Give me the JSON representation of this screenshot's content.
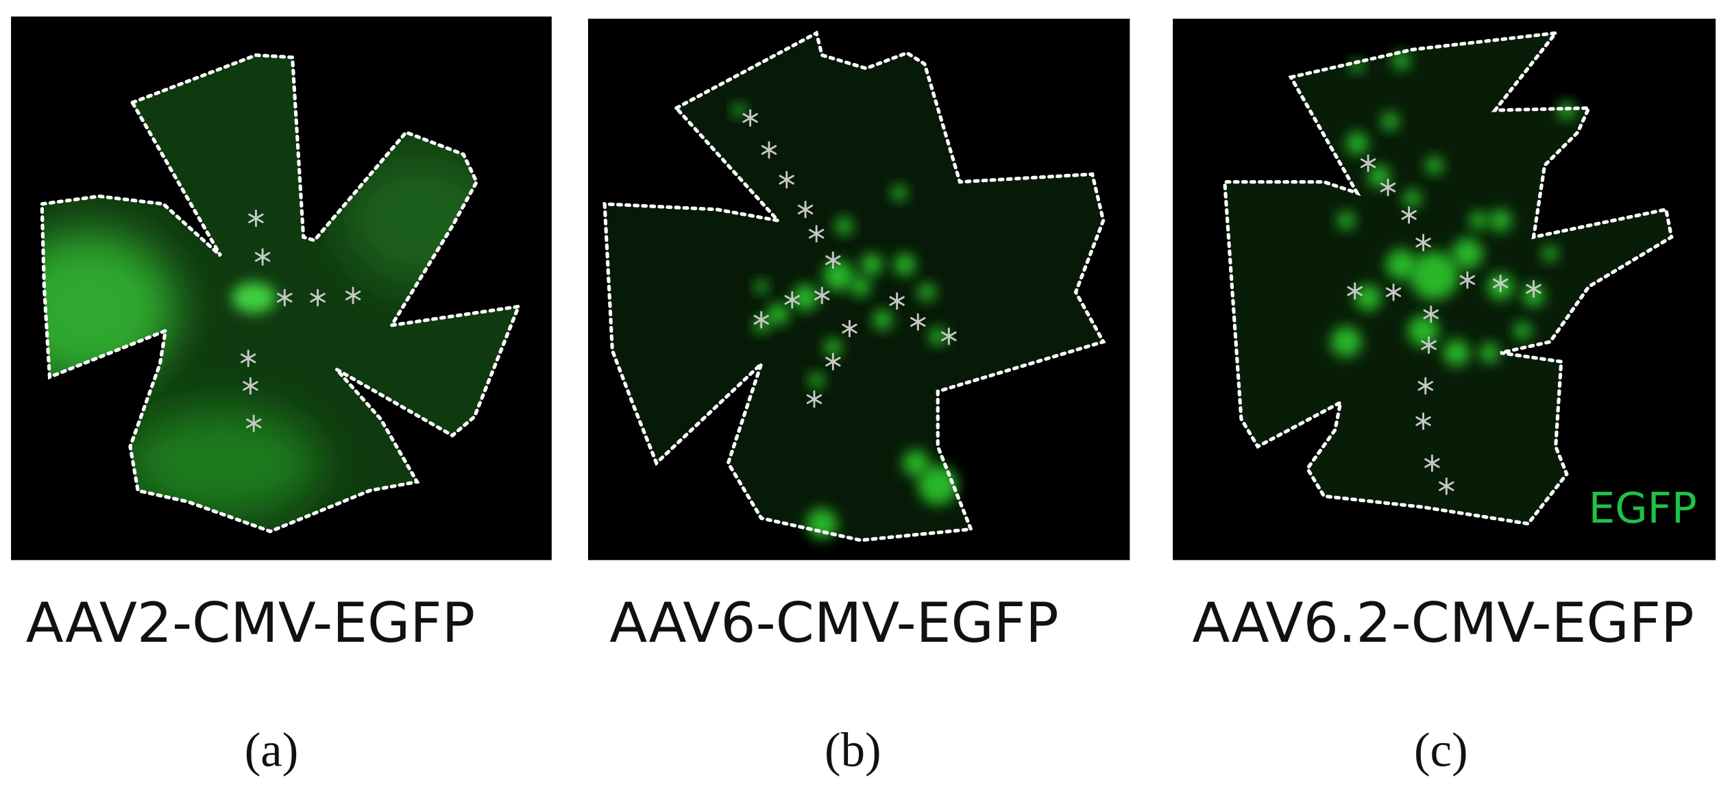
{
  "panels": [
    {
      "image_label": "AAV2-CMV-EGFP",
      "caption": "(a)"
    },
    {
      "image_label": "AAV6-CMV-EGFP",
      "caption": "(b)"
    },
    {
      "image_label": "AAV6.2-CMV-EGFP",
      "caption": "(c)"
    }
  ],
  "channel_label": "EGFP"
}
